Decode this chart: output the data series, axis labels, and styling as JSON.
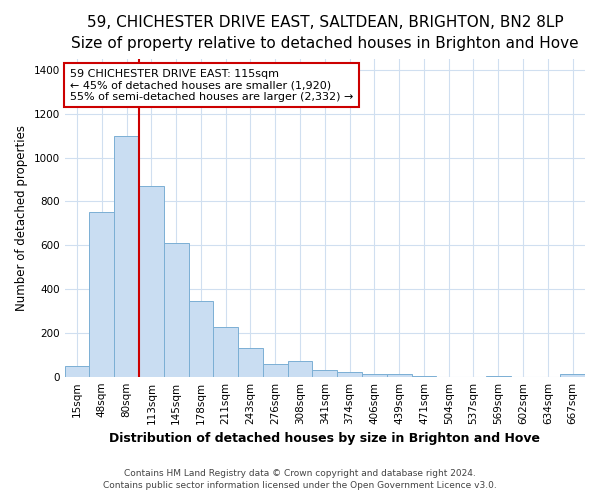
{
  "title1": "59, CHICHESTER DRIVE EAST, SALTDEAN, BRIGHTON, BN2 8LP",
  "title2": "Size of property relative to detached houses in Brighton and Hove",
  "xlabel": "Distribution of detached houses by size in Brighton and Hove",
  "ylabel": "Number of detached properties",
  "bin_labels": [
    "15sqm",
    "48sqm",
    "80sqm",
    "113sqm",
    "145sqm",
    "178sqm",
    "211sqm",
    "243sqm",
    "276sqm",
    "308sqm",
    "341sqm",
    "374sqm",
    "406sqm",
    "439sqm",
    "471sqm",
    "504sqm",
    "537sqm",
    "569sqm",
    "602sqm",
    "634sqm",
    "667sqm"
  ],
  "bar_heights": [
    50,
    750,
    1100,
    870,
    610,
    345,
    225,
    130,
    60,
    70,
    30,
    20,
    10,
    10,
    5,
    0,
    0,
    5,
    0,
    0,
    10
  ],
  "bar_color": "#c9ddf2",
  "bar_edge_color": "#7bafd4",
  "vline_color": "#cc0000",
  "annotation_text": "59 CHICHESTER DRIVE EAST: 115sqm\n← 45% of detached houses are smaller (1,920)\n55% of semi-detached houses are larger (2,332) →",
  "annotation_box_color": "#ffffff",
  "annotation_box_edge": "#cc0000",
  "ylim": [
    0,
    1450
  ],
  "footnote1": "Contains HM Land Registry data © Crown copyright and database right 2024.",
  "footnote2": "Contains public sector information licensed under the Open Government Licence v3.0.",
  "background_color": "#ffffff",
  "grid_color": "#d0dff0",
  "title_fontsize": 11,
  "subtitle_fontsize": 9.5,
  "xlabel_fontsize": 9,
  "ylabel_fontsize": 8.5,
  "tick_fontsize": 7.5,
  "annotation_fontsize": 8,
  "footnote_fontsize": 6.5
}
